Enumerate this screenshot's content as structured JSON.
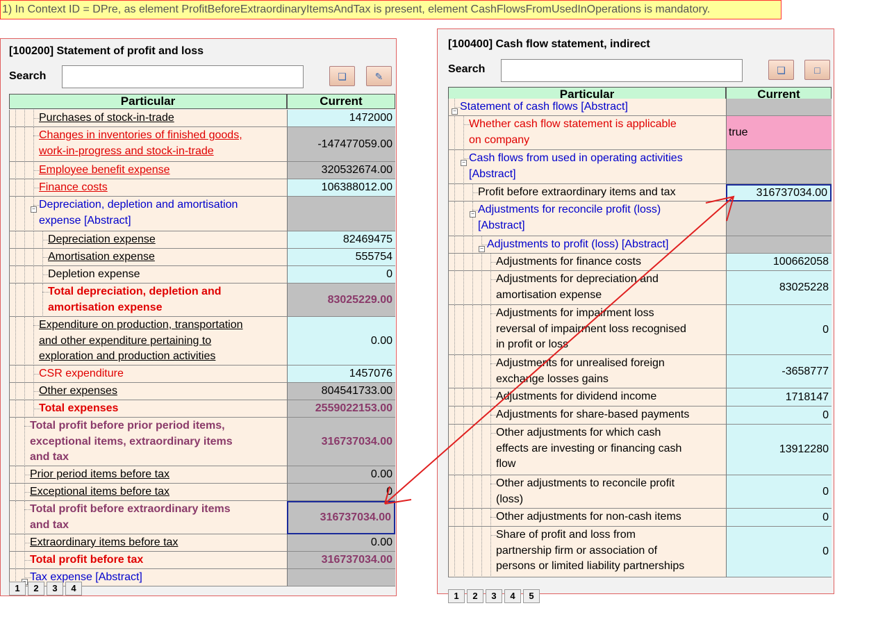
{
  "error_banner": "1) In Context ID = DPre, as element ProfitBeforeExtraordinaryItemsAndTax is present, element CashFlowsFromUsedInOperations is mandatory.",
  "left_panel": {
    "title": "[100200] Statement of profit and loss",
    "search_label": "Search",
    "col_particular": "Particular",
    "col_current": "Current",
    "pages": [
      "1",
      "2",
      "3",
      "4"
    ],
    "rows": [
      {
        "lines": [
          "Purchases of stock-in-trade"
        ],
        "value": "1472000"
      },
      {
        "lines": [
          "Changes in inventories of finished goods,",
          "work-in-progress and stock-in-trade"
        ],
        "value": "-147477059.00"
      },
      {
        "lines": [
          "Employee benefit expense"
        ],
        "value": "320532674.00"
      },
      {
        "lines": [
          "Finance costs"
        ],
        "value": "106388012.00"
      },
      {
        "lines": [
          "Depreciation, depletion and amortisation",
          "expense [Abstract]"
        ],
        "value": ""
      },
      {
        "lines": [
          "Depreciation expense"
        ],
        "value": "82469475"
      },
      {
        "lines": [
          "Amortisation expense"
        ],
        "value": "555754"
      },
      {
        "lines": [
          "Depletion expense"
        ],
        "value": "0"
      },
      {
        "lines": [
          "Total depreciation, depletion and",
          "amortisation expense"
        ],
        "value": "83025229.00"
      },
      {
        "lines": [
          "Expenditure on production, transportation",
          "and other expenditure pertaining to",
          "exploration and production activities"
        ],
        "value": "0.00"
      },
      {
        "lines": [
          "CSR expenditure"
        ],
        "value": "1457076"
      },
      {
        "lines": [
          "Other expenses"
        ],
        "value": "804541733.00"
      },
      {
        "lines": [
          "Total expenses"
        ],
        "value": "2559022153.00"
      },
      {
        "lines": [
          "Total profit before prior period items,",
          "exceptional items, extraordinary items",
          "and tax"
        ],
        "value": "316737034.00"
      },
      {
        "lines": [
          "Prior period items before tax"
        ],
        "value": "0.00"
      },
      {
        "lines": [
          "Exceptional items before tax"
        ],
        "value": "0"
      },
      {
        "lines": [
          "Total profit before extraordinary items",
          "and tax"
        ],
        "value": "316737034.00"
      },
      {
        "lines": [
          "Extraordinary items before tax"
        ],
        "value": "0.00"
      },
      {
        "lines": [
          "Total profit before tax"
        ],
        "value": "316737034.00"
      },
      {
        "lines": [
          "Tax expense [Abstract]"
        ],
        "value": ""
      }
    ]
  },
  "right_panel": {
    "title": "[100400] Cash flow statement, indirect",
    "search_label": "Search",
    "col_particular": "Particular",
    "col_current": "Current",
    "pages": [
      "1",
      "2",
      "3",
      "4",
      "5"
    ],
    "rows": [
      {
        "lines": [
          "Statement of cash flows [Abstract]"
        ],
        "value": ""
      },
      {
        "lines": [
          "Whether cash flow statement is applicable",
          "on company"
        ],
        "value": "true"
      },
      {
        "lines": [
          "Cash flows from used in operating activities",
          "[Abstract]"
        ],
        "value": ""
      },
      {
        "lines": [
          "Profit before extraordinary items and tax"
        ],
        "value": "316737034.00"
      },
      {
        "lines": [
          "Adjustments for reconcile profit (loss)",
          "[Abstract]"
        ],
        "value": ""
      },
      {
        "lines": [
          "Adjustments to profit (loss) [Abstract]"
        ],
        "value": ""
      },
      {
        "lines": [
          "Adjustments for finance costs"
        ],
        "value": "100662058"
      },
      {
        "lines": [
          "Adjustments for depreciation and",
          "amortisation expense"
        ],
        "value": "83025228"
      },
      {
        "lines": [
          "Adjustments for impairment loss",
          "reversal of impairment loss recognised",
          "in profit or loss"
        ],
        "value": "0"
      },
      {
        "lines": [
          "Adjustments for unrealised foreign",
          "exchange losses gains"
        ],
        "value": "-3658777"
      },
      {
        "lines": [
          "Adjustments for dividend income"
        ],
        "value": "1718147"
      },
      {
        "lines": [
          "Adjustments for share-based payments"
        ],
        "value": "0"
      },
      {
        "lines": [
          "Other adjustments for which cash",
          "effects are investing or financing cash",
          "flow"
        ],
        "value": "13912280"
      },
      {
        "lines": [
          "Other adjustments to reconcile profit",
          "(loss)"
        ],
        "value": "0"
      },
      {
        "lines": [
          "Other adjustments for non-cash items"
        ],
        "value": "0"
      },
      {
        "lines": [
          "Share of profit and loss from",
          "partnership firm or association of",
          "persons or limited liability partnerships"
        ],
        "value": "0"
      }
    ]
  },
  "colors": {
    "header_bg": "#c6f7d4",
    "row_bg": "#fdf0e3",
    "value_cyan": "#d4f6f8",
    "value_gray": "#c0c0c0",
    "value_pink": "#f7a3c7",
    "error_bg": "#ffff99",
    "arrow": "#e02020"
  }
}
